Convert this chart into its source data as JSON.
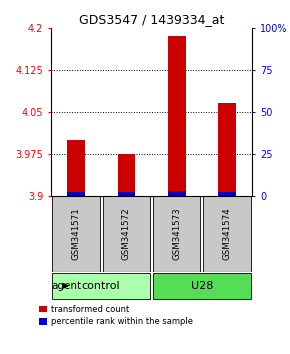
{
  "title": "GDS3547 / 1439334_at",
  "samples": [
    "GSM341571",
    "GSM341572",
    "GSM341573",
    "GSM341574"
  ],
  "transformed_counts": [
    4.0,
    3.975,
    4.185,
    4.065
  ],
  "percentile_ranks": [
    2,
    2,
    3,
    2
  ],
  "bar_bottom": 3.9,
  "ylim_left": [
    3.9,
    4.2
  ],
  "ylim_right": [
    0,
    100
  ],
  "yticks_left": [
    3.9,
    3.975,
    4.05,
    4.125,
    4.2
  ],
  "yticks_right": [
    0,
    25,
    50,
    75,
    100
  ],
  "ytick_labels_left": [
    "3.9",
    "3.975",
    "4.05",
    "4.125",
    "4.2"
  ],
  "ytick_labels_right": [
    "0",
    "25",
    "50",
    "75",
    "100%"
  ],
  "gridlines_at": [
    3.975,
    4.05,
    4.125
  ],
  "group_labels": [
    "control",
    "U28"
  ],
  "group_colors_light": [
    "#AAFFAA",
    "#55DD55"
  ],
  "group_ranges": [
    [
      0,
      2
    ],
    [
      2,
      4
    ]
  ],
  "sample_area_color": "#C8C8C8",
  "bar_color_red": "#CC0000",
  "bar_color_blue": "#0000CC",
  "agent_label": "agent",
  "legend_red": "transformed count",
  "legend_blue": "percentile rank within the sample",
  "bar_width": 0.35
}
